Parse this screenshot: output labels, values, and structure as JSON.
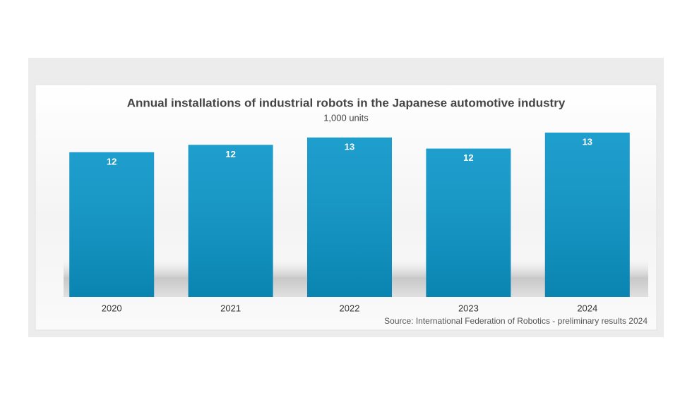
{
  "chart_data": {
    "type": "bar",
    "title": "Annual installations of industrial robots in the Japanese automotive industry",
    "subtitle": "1,000 units",
    "categories": [
      "2020",
      "2021",
      "2022",
      "2023",
      "2024"
    ],
    "values": [
      11.8,
      12.4,
      13.0,
      12.1,
      13.4
    ],
    "value_labels": [
      "12",
      "12",
      "13",
      "12",
      "13"
    ],
    "color": "#0b96c9",
    "source": "Source: International Federation of Robotics - preliminary results 2024"
  }
}
